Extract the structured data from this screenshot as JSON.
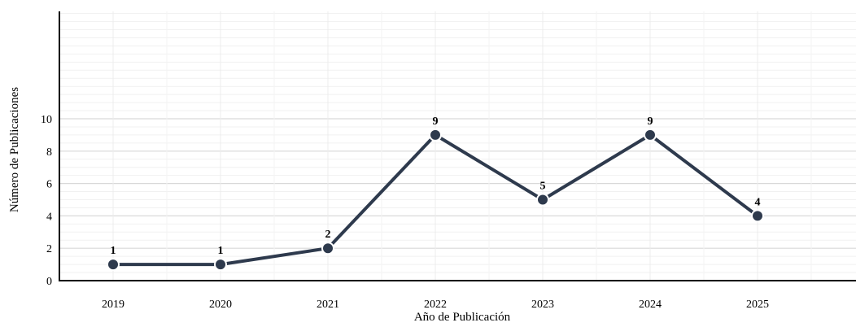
{
  "chart_data": {
    "type": "line",
    "x": [
      "2019",
      "2020",
      "2021",
      "2022",
      "2023",
      "2024",
      "2025"
    ],
    "series": [
      {
        "values": [
          1,
          1,
          2,
          9,
          5,
          9,
          4
        ],
        "color": "#2e3a4d"
      }
    ],
    "data_labels": [
      "1",
      "1",
      "2",
      "9",
      "5",
      "9",
      "4"
    ],
    "xlabel": "Año de Publicación",
    "ylabel": "Número de Publicaciones",
    "ytick_labels": [
      "0",
      "2",
      "4",
      "6",
      "8",
      "10"
    ],
    "ylim": [
      0,
      10
    ],
    "grid": true,
    "colors": {
      "line": "#2e3a4d",
      "marker_edge": "#ffffff",
      "grid": "#e6e6e6",
      "axis": "#000000"
    }
  }
}
